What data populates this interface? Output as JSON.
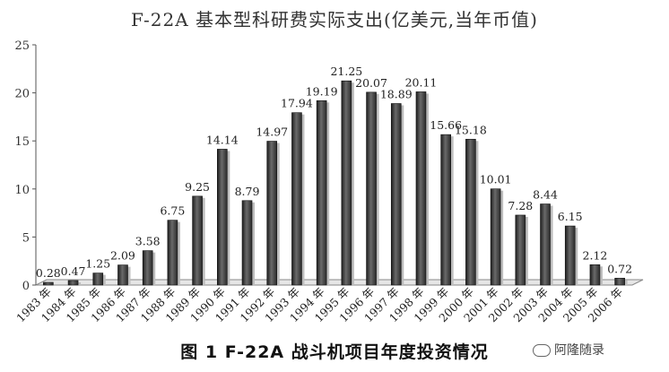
{
  "chart_data": {
    "type": "bar",
    "title": "F-22A 基本型科研费实际支出(亿美元,当年币值)",
    "categories": [
      "1983 年",
      "1984 年",
      "1985 年",
      "1986 年",
      "1987 年",
      "1988 年",
      "1989 年",
      "1990 年",
      "1991 年",
      "1992 年",
      "1993 年",
      "1994 年",
      "1995 年",
      "1996 年",
      "1997 年",
      "1998 年",
      "1999 年",
      "2000 年",
      "2001 年",
      "2002 年",
      "2003 年",
      "2004 年",
      "2005 年",
      "2006 年"
    ],
    "values": [
      0.28,
      0.47,
      1.25,
      2.09,
      3.58,
      6.75,
      9.25,
      14.14,
      8.79,
      14.97,
      17.94,
      19.19,
      21.25,
      20.07,
      18.89,
      20.11,
      15.66,
      15.18,
      10.01,
      7.28,
      8.44,
      6.15,
      2.12,
      0.72
    ],
    "value_labels": [
      "0.28",
      "0.47",
      "1.25",
      "2.09",
      "3.58",
      "6.75",
      "9.25",
      "14.14",
      "8.79",
      "14.97",
      "17.94",
      "19.19",
      "21.25",
      "20.07",
      "18.89",
      "20.11",
      "15.66",
      "15.18",
      "10.01",
      "7.28",
      "8.44",
      "6.15",
      "2.12",
      "0.72"
    ],
    "yticks": [
      "0",
      "5",
      "10",
      "15",
      "20",
      "25"
    ],
    "ylim": [
      0,
      25
    ],
    "grid": false,
    "bar_color": "#3a3a3a"
  },
  "caption": "图 1  F-22A 战斗机项目年度投资情况",
  "watermark": "阿隆随录"
}
